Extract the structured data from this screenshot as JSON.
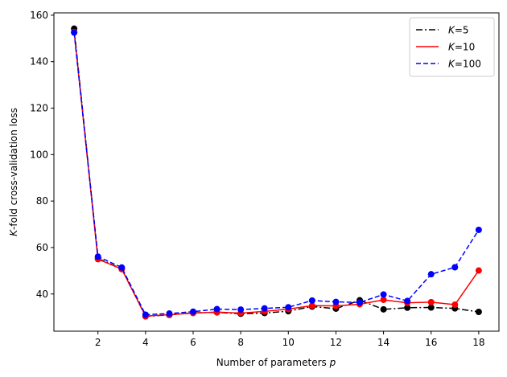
{
  "chart_data": {
    "type": "line",
    "title": "",
    "xlabel": "Number of parameters",
    "xlabel_var": "p",
    "ylabel": "-fold cross-validation loss",
    "ylabel_var": "K",
    "xlim": [
      0.15,
      18.85
    ],
    "ylim": [
      24,
      161
    ],
    "xticks": [
      2,
      4,
      6,
      8,
      10,
      12,
      14,
      16,
      18
    ],
    "yticks": [
      40,
      60,
      80,
      100,
      120,
      140,
      160
    ],
    "legend_position": "top-right",
    "grid": false,
    "x": [
      1,
      2,
      3,
      4,
      5,
      6,
      7,
      8,
      9,
      10,
      11,
      12,
      13,
      14,
      15,
      16,
      17,
      18
    ],
    "series": [
      {
        "name": "=5",
        "var": "K",
        "color": "#000000",
        "dash": "dashdot",
        "values": [
          154.2,
          55.3,
          50.8,
          30.4,
          31.0,
          31.9,
          32.1,
          31.5,
          31.8,
          32.6,
          34.6,
          33.7,
          37.3,
          33.4,
          34.1,
          34.2,
          33.8,
          32.3
        ]
      },
      {
        "name": "=10",
        "var": "K",
        "color": "#ff0000",
        "dash": "solid",
        "values": [
          152.8,
          55.0,
          50.7,
          30.5,
          31.1,
          31.8,
          32.2,
          31.8,
          32.5,
          33.5,
          35.0,
          34.9,
          35.6,
          37.5,
          36.2,
          36.5,
          35.4,
          50.1
        ]
      },
      {
        "name": "=100",
        "var": "K",
        "color": "#0000ff",
        "dash": "dashed",
        "values": [
          152.5,
          56.1,
          51.4,
          31.1,
          31.6,
          32.4,
          33.5,
          33.3,
          33.8,
          34.3,
          37.2,
          36.6,
          36.4,
          39.8,
          37.0,
          48.5,
          51.5,
          67.6
        ]
      }
    ]
  }
}
